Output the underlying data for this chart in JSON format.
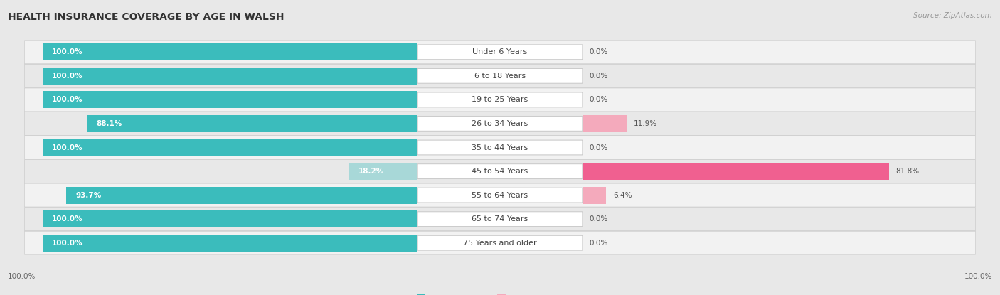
{
  "title": "HEALTH INSURANCE COVERAGE BY AGE IN WALSH",
  "source": "Source: ZipAtlas.com",
  "categories": [
    "Under 6 Years",
    "6 to 18 Years",
    "19 to 25 Years",
    "26 to 34 Years",
    "35 to 44 Years",
    "45 to 54 Years",
    "55 to 64 Years",
    "65 to 74 Years",
    "75 Years and older"
  ],
  "with_coverage": [
    100.0,
    100.0,
    100.0,
    88.1,
    100.0,
    18.2,
    93.7,
    100.0,
    100.0
  ],
  "without_coverage": [
    0.0,
    0.0,
    0.0,
    11.9,
    0.0,
    81.8,
    6.4,
    0.0,
    0.0
  ],
  "color_with_strong": "#3BBCBC",
  "color_with_light": "#A8D8D8",
  "color_without_strong": "#F06090",
  "color_without_light": "#F4AABC",
  "bg_strip_light": "#EFEFEF",
  "bg_strip_dark": "#E4E4E4",
  "title_fontsize": 10,
  "label_fontsize": 8,
  "bar_label_fontsize": 7.5,
  "legend_fontsize": 8,
  "axis_label_fontsize": 7.5,
  "x_left_label": "100.0%",
  "x_right_label": "100.0%"
}
